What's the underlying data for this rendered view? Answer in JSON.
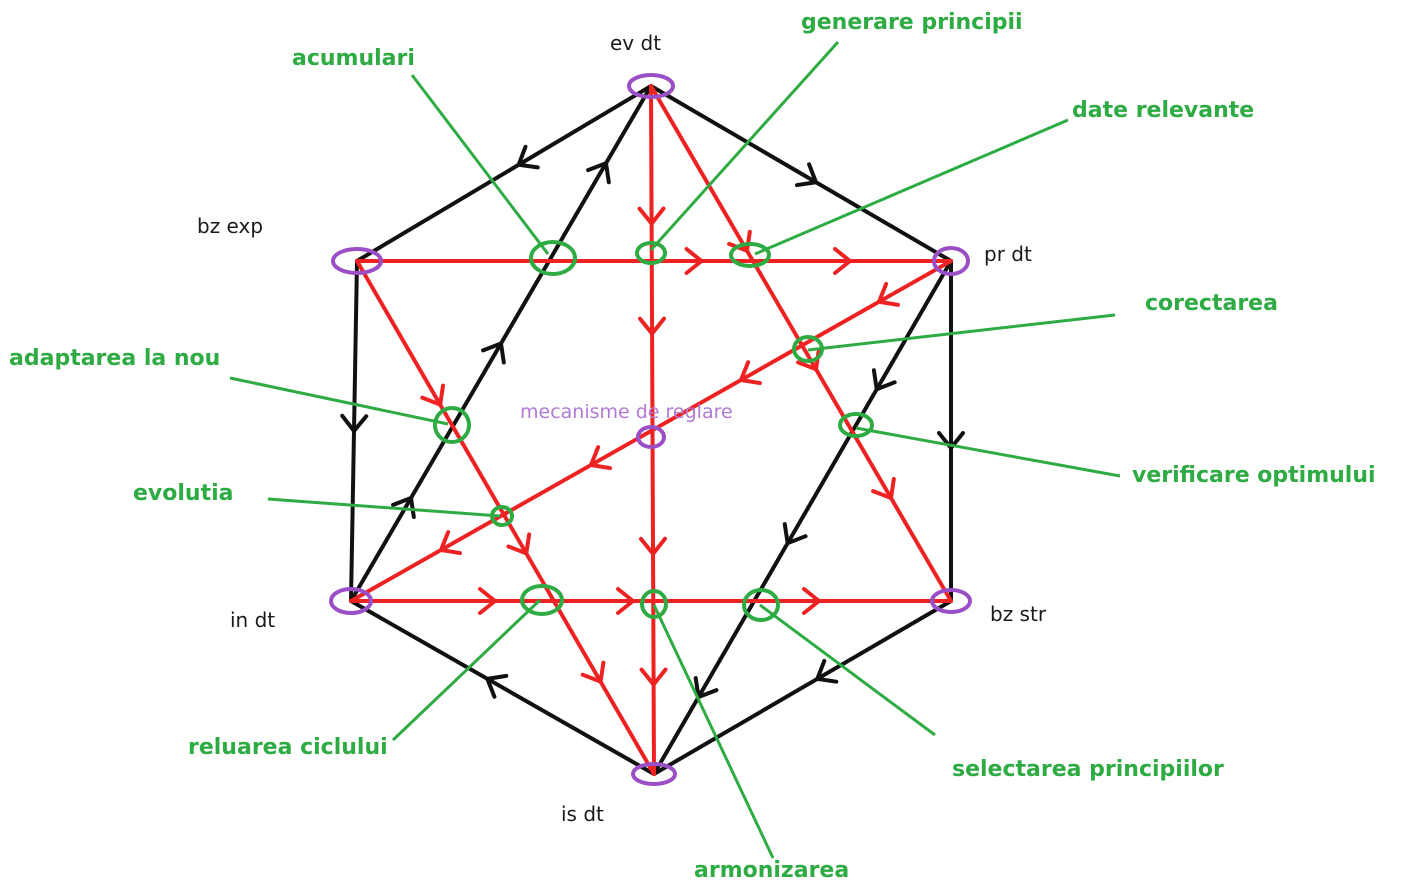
{
  "nodes": {
    "ev_dt": "ev dt",
    "pr_dt": "pr dt",
    "bz_str": "bz str",
    "is_dt": "is dt",
    "in_dt": "in dt",
    "bz_exp": "bz exp",
    "center": "mecanisme de reglare"
  },
  "annotations": {
    "acumulari": "acumulari",
    "generare_principii": "generare  principii",
    "date_relevante": "date relevante",
    "corectarea": "corectarea",
    "verificare_optimului": "verificare optimului",
    "adaptarea_la_nou": "adaptarea la nou",
    "evolutia": "evolutia",
    "reluarea_ciclului": "reluarea ciclului",
    "armonizarea": "armonizarea",
    "selectarea_principiilor": "selectarea principiilor"
  },
  "colors": {
    "outer_edges": "#111111",
    "inner_edges": "#ee2222",
    "node_rings": "#9b4fc6",
    "annotation": "#2eab43",
    "center_label": "#b07ad6"
  }
}
